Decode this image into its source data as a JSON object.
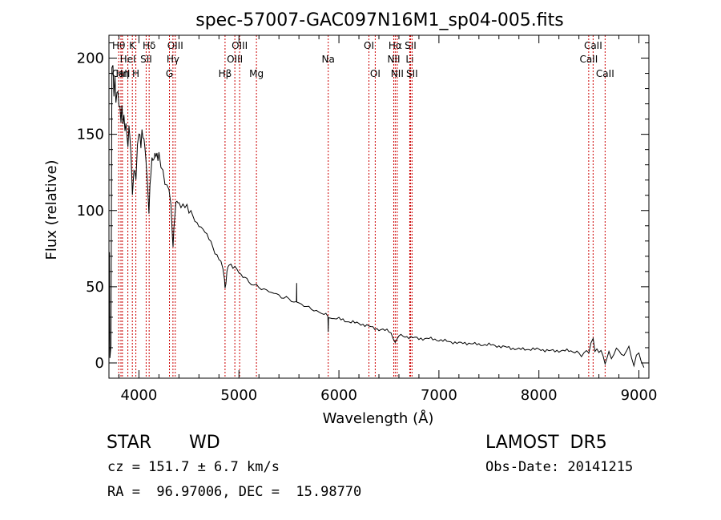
{
  "chart_data": {
    "type": "line",
    "title": "spec-57007-GAC097N16M1_sp04-005.fits",
    "xlabel": "Wavelength (Å)",
    "ylabel": "Flux (relative)",
    "xlim": [
      3700,
      9100
    ],
    "ylim": [
      -10,
      215
    ],
    "x_ticks": [
      4000,
      5000,
      6000,
      7000,
      8000,
      9000
    ],
    "y_ticks": [
      0,
      50,
      100,
      150,
      200
    ],
    "grid": false,
    "series": [
      {
        "color": "#000000",
        "points": [
          [
            3700,
            5
          ],
          [
            3705,
            72
          ],
          [
            3710,
            5
          ],
          [
            3720,
            10
          ],
          [
            3730,
            190
          ],
          [
            3740,
            195
          ],
          [
            3750,
            175
          ],
          [
            3760,
            185
          ],
          [
            3770,
            170
          ],
          [
            3780,
            180
          ],
          [
            3790,
            178
          ],
          [
            3800,
            168
          ],
          [
            3810,
            172
          ],
          [
            3820,
            160
          ],
          [
            3830,
            168
          ],
          [
            3840,
            158
          ],
          [
            3850,
            165
          ],
          [
            3860,
            150
          ],
          [
            3870,
            155
          ],
          [
            3880,
            150
          ],
          [
            3890,
            140
          ],
          [
            3900,
            152
          ],
          [
            3910,
            148
          ],
          [
            3920,
            138
          ],
          [
            3935,
            112
          ],
          [
            3950,
            130
          ],
          [
            3960,
            126
          ],
          [
            3970,
            120
          ],
          [
            3985,
            140
          ],
          [
            4000,
            148
          ],
          [
            4010,
            150
          ],
          [
            4020,
            142
          ],
          [
            4030,
            150
          ],
          [
            4040,
            145
          ],
          [
            4050,
            148
          ],
          [
            4060,
            140
          ],
          [
            4070,
            130
          ],
          [
            4085,
            115
          ],
          [
            4100,
            97
          ],
          [
            4110,
            118
          ],
          [
            4120,
            128
          ],
          [
            4130,
            135
          ],
          [
            4140,
            132
          ],
          [
            4150,
            136
          ],
          [
            4160,
            138
          ],
          [
            4170,
            132
          ],
          [
            4180,
            137
          ],
          [
            4190,
            133
          ],
          [
            4200,
            135
          ],
          [
            4220,
            130
          ],
          [
            4240,
            125
          ],
          [
            4260,
            120
          ],
          [
            4280,
            118
          ],
          [
            4300,
            113
          ],
          [
            4320,
            105
          ],
          [
            4335,
            85
          ],
          [
            4341,
            78
          ],
          [
            4350,
            88
          ],
          [
            4360,
            98
          ],
          [
            4370,
            103
          ],
          [
            4380,
            105
          ],
          [
            4390,
            108
          ],
          [
            4400,
            106
          ],
          [
            4420,
            105
          ],
          [
            4440,
            103
          ],
          [
            4460,
            104
          ],
          [
            4480,
            101
          ],
          [
            4500,
            98
          ],
          [
            4520,
            100
          ],
          [
            4540,
            96
          ],
          [
            4560,
            94
          ],
          [
            4580,
            92
          ],
          [
            4600,
            90
          ],
          [
            4620,
            89
          ],
          [
            4640,
            87
          ],
          [
            4660,
            86
          ],
          [
            4680,
            84
          ],
          [
            4700,
            82
          ],
          [
            4720,
            80
          ],
          [
            4740,
            76
          ],
          [
            4760,
            72
          ],
          [
            4780,
            70
          ],
          [
            4800,
            68
          ],
          [
            4820,
            66
          ],
          [
            4840,
            62
          ],
          [
            4855,
            55
          ],
          [
            4861,
            48
          ],
          [
            4870,
            53
          ],
          [
            4880,
            60
          ],
          [
            4890,
            63
          ],
          [
            4900,
            65
          ],
          [
            4920,
            64
          ],
          [
            4940,
            62
          ],
          [
            4960,
            63
          ],
          [
            4980,
            61
          ],
          [
            5000,
            60
          ],
          [
            5020,
            58
          ],
          [
            5040,
            57
          ],
          [
            5060,
            56
          ],
          [
            5080,
            55
          ],
          [
            5100,
            53
          ],
          [
            5150,
            51
          ],
          [
            5200,
            50
          ],
          [
            5250,
            48
          ],
          [
            5300,
            47
          ],
          [
            5350,
            46
          ],
          [
            5400,
            44
          ],
          [
            5450,
            43
          ],
          [
            5500,
            42
          ],
          [
            5550,
            40
          ],
          [
            5575,
            40
          ],
          [
            5577,
            53
          ],
          [
            5579,
            40
          ],
          [
            5600,
            39
          ],
          [
            5650,
            38
          ],
          [
            5700,
            36
          ],
          [
            5750,
            35
          ],
          [
            5800,
            33
          ],
          [
            5850,
            32
          ],
          [
            5890,
            31
          ],
          [
            5893,
            20
          ],
          [
            5896,
            29
          ],
          [
            5950,
            30
          ],
          [
            6000,
            29
          ],
          [
            6100,
            27
          ],
          [
            6200,
            26
          ],
          [
            6300,
            24
          ],
          [
            6400,
            22
          ],
          [
            6500,
            21
          ],
          [
            6563,
            14
          ],
          [
            6600,
            18
          ],
          [
            6700,
            17
          ],
          [
            6800,
            16
          ],
          [
            6900,
            16
          ],
          [
            7000,
            15
          ],
          [
            7100,
            14
          ],
          [
            7200,
            13
          ],
          [
            7300,
            13
          ],
          [
            7400,
            12
          ],
          [
            7500,
            12
          ],
          [
            7600,
            11
          ],
          [
            7700,
            10
          ],
          [
            7800,
            9
          ],
          [
            7900,
            9
          ],
          [
            8000,
            9
          ],
          [
            8100,
            8
          ],
          [
            8200,
            8
          ],
          [
            8300,
            8
          ],
          [
            8400,
            7
          ],
          [
            8450,
            4
          ],
          [
            8500,
            10
          ],
          [
            8542,
            14
          ],
          [
            8560,
            6
          ],
          [
            8600,
            8
          ],
          [
            8662,
            2
          ],
          [
            8700,
            8
          ],
          [
            8750,
            4
          ],
          [
            8800,
            10
          ],
          [
            8850,
            4
          ],
          [
            8900,
            10
          ],
          [
            8950,
            0
          ],
          [
            9000,
            5
          ],
          [
            9020,
            0
          ],
          [
            9050,
            -3
          ]
        ]
      }
    ],
    "lines": [
      {
        "label": "Hθ",
        "x": 3798,
        "row": 0
      },
      {
        "label": "CaII",
        "x": 3820,
        "row": 2
      },
      {
        "label": "HeI",
        "x": 3889,
        "row": 1
      },
      {
        "label": "Hη",
        "x": 3835,
        "row": 2
      },
      {
        "label": "K",
        "x": 3934,
        "row": 0
      },
      {
        "label": "H",
        "x": 3969,
        "row": 2
      },
      {
        "label": "Hδ",
        "x": 4102,
        "row": 0
      },
      {
        "label": "SII",
        "x": 4072,
        "row": 1
      },
      {
        "label": "OIII",
        "x": 4363,
        "row": 0
      },
      {
        "label": "Hγ",
        "x": 4340,
        "row": 1
      },
      {
        "label": "G",
        "x": 4305,
        "row": 2
      },
      {
        "label": "Hβ",
        "x": 4861,
        "row": 2
      },
      {
        "label": "OIII",
        "x": 5007,
        "row": 0
      },
      {
        "label": "OIII",
        "x": 4959,
        "row": 1
      },
      {
        "label": "Mg",
        "x": 5175,
        "row": 2
      },
      {
        "label": "Na",
        "x": 5893,
        "row": 1
      },
      {
        "label": "OI",
        "x": 6300,
        "row": 0
      },
      {
        "label": "OI",
        "x": 6363,
        "row": 2
      },
      {
        "label": "Hα",
        "x": 6563,
        "row": 0
      },
      {
        "label": "NII",
        "x": 6548,
        "row": 1
      },
      {
        "label": "NII",
        "x": 6583,
        "row": 2
      },
      {
        "label": "SII",
        "x": 6716,
        "row": 0
      },
      {
        "label": "Li",
        "x": 6708,
        "row": 1
      },
      {
        "label": "SII",
        "x": 6731,
        "row": 2
      },
      {
        "label": "CaII",
        "x": 8542,
        "row": 0
      },
      {
        "label": "CaII",
        "x": 8498,
        "row": 1
      },
      {
        "label": "CaII",
        "x": 8662,
        "row": 2
      }
    ]
  },
  "footer": {
    "object_class": "STAR",
    "subclass": "WD",
    "survey": "LAMOST  DR5",
    "velocity": "cz = 151.7 ± 6.7 km/s",
    "obs_date": "Obs-Date: 20141215",
    "coords": "RA =  96.97006, DEC =  15.98770"
  },
  "colors": {
    "spectrum": "#000000",
    "line_markers": "#cc0000",
    "axes": "#000000"
  }
}
